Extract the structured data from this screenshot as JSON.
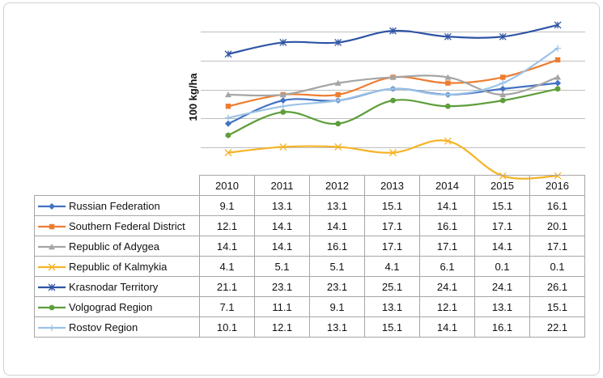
{
  "chart_data": {
    "type": "line",
    "title": "",
    "xlabel": "",
    "ylabel": "100 kg/ha",
    "ylim": [
      0,
      30
    ],
    "y_gridlines": [
      5,
      10,
      15,
      20,
      25
    ],
    "grid": true,
    "legend": "data-table",
    "categories": [
      "2010",
      "2011",
      "2012",
      "2013",
      "2014",
      "2015",
      "2016"
    ],
    "series": [
      {
        "name": "Russian Federation",
        "color": "#4472C4",
        "marker": "diamond",
        "smooth": true,
        "values": [
          9.1,
          13.1,
          13.1,
          15.1,
          14.1,
          15.1,
          16.1
        ],
        "labels": [
          "9.1",
          "13.1",
          "13.1",
          "15.1",
          "14.1",
          "15.1",
          "16.1"
        ]
      },
      {
        "name": "Southern Federal District",
        "color": "#ED7D31",
        "marker": "square",
        "smooth": true,
        "values": [
          12.1,
          14.1,
          14.1,
          17.1,
          16.1,
          17.1,
          20.1
        ],
        "labels": [
          "12.1",
          "14.1",
          "14.1",
          "17.1",
          "16.1",
          "17.1",
          "20.1"
        ]
      },
      {
        "name": "Republic of Adygea",
        "color": "#A5A5A5",
        "marker": "triangle",
        "smooth": true,
        "values": [
          14.1,
          14.1,
          16.1,
          17.1,
          17.1,
          14.1,
          17.1
        ],
        "labels": [
          "14.1",
          "14.1",
          "16.1",
          "17.1",
          "17.1",
          "14.1",
          "17.1"
        ]
      },
      {
        "name": "Republic of Kalmykia",
        "color": "#F5B325",
        "marker": "x",
        "smooth": true,
        "values": [
          4.1,
          5.1,
          5.1,
          4.1,
          6.1,
          0.1,
          0.1
        ],
        "labels": [
          "4.1",
          "5.1",
          "5.1",
          "4.1",
          "6.1",
          "0.1",
          "0.1"
        ]
      },
      {
        "name": "Krasnodar Territory",
        "color": "#2F55A4",
        "marker": "star",
        "smooth": true,
        "values": [
          21.1,
          23.1,
          23.1,
          25.1,
          24.1,
          24.1,
          26.1
        ],
        "labels": [
          "21.1",
          "23.1",
          "23.1",
          "25.1",
          "24.1",
          "24.1",
          "26.1"
        ]
      },
      {
        "name": "Volgograd Region",
        "color": "#5E9E3A",
        "marker": "circle",
        "smooth": true,
        "values": [
          7.1,
          11.1,
          9.1,
          13.1,
          12.1,
          13.1,
          15.1
        ],
        "labels": [
          "7.1",
          "11.1",
          "9.1",
          "13.1",
          "12.1",
          "13.1",
          "15.1"
        ]
      },
      {
        "name": "Rostov Region",
        "color": "#9DC3E6",
        "marker": "plus",
        "smooth": true,
        "values": [
          10.1,
          12.1,
          13.1,
          15.1,
          14.1,
          16.1,
          22.1
        ],
        "labels": [
          "10.1",
          "12.1",
          "13.1",
          "15.1",
          "14.1",
          "16.1",
          "22.1"
        ]
      }
    ]
  }
}
